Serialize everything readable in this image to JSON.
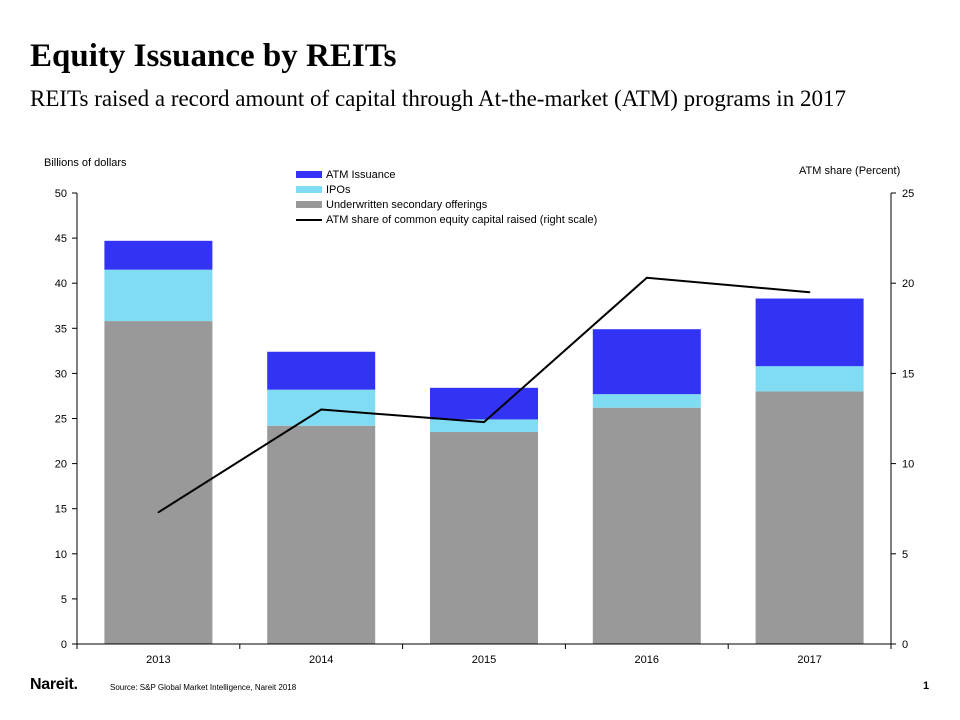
{
  "title": "Equity Issuance by REITs",
  "subtitle": "REITs raised a record amount of capital through At-the-market (ATM) programs in 2017",
  "footer": {
    "logo": "Nareit.",
    "source": "Source: S&P Global Market Intelligence, Nareit 2018",
    "page": "1"
  },
  "chart_data": {
    "type": "bar",
    "stacked": true,
    "categories": [
      "2013",
      "2014",
      "2015",
      "2016",
      "2017"
    ],
    "series": [
      {
        "name": "Underwritten secondary offerings",
        "color": "#999999",
        "values": [
          35.8,
          24.2,
          23.5,
          26.2,
          28.0
        ]
      },
      {
        "name": "IPOs",
        "color": "#80dcf2",
        "values": [
          5.7,
          4.0,
          1.4,
          1.5,
          2.8
        ]
      },
      {
        "name": "ATM Issuance",
        "color": "#3333f5",
        "values": [
          3.2,
          4.2,
          3.5,
          7.2,
          7.5
        ]
      },
      {
        "name": "ATM share of common equity capital raised (right scale)",
        "type": "line",
        "axis": "right",
        "color": "#000000",
        "values": [
          7.3,
          13.0,
          12.3,
          20.3,
          19.5
        ]
      }
    ],
    "legend_order": [
      "ATM Issuance",
      "IPOs",
      "Underwritten secondary offerings",
      "ATM share of common equity capital raised (right scale)"
    ],
    "ylabel": "Billions of dollars",
    "ylim": [
      0,
      50
    ],
    "yticks": [
      0,
      5,
      10,
      15,
      20,
      25,
      30,
      35,
      40,
      45,
      50
    ],
    "y2label": "ATM  share (Percent)",
    "y2lim": [
      0,
      25
    ],
    "y2ticks": [
      0,
      5,
      10,
      15,
      20,
      25
    ],
    "grid": false,
    "legend_position": "top-center"
  }
}
